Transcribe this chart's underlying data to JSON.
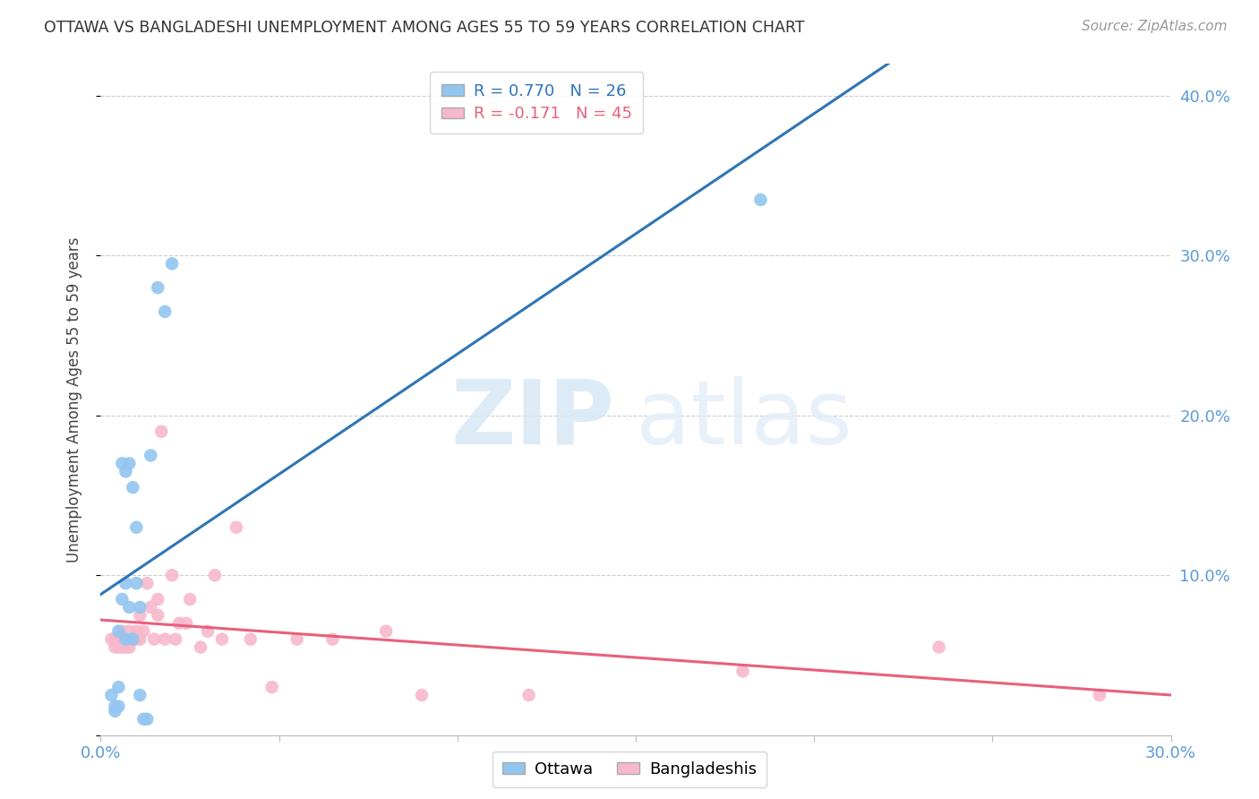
{
  "title": "OTTAWA VS BANGLADESHI UNEMPLOYMENT AMONG AGES 55 TO 59 YEARS CORRELATION CHART",
  "source": "Source: ZipAtlas.com",
  "ylabel": "Unemployment Among Ages 55 to 59 years",
  "xlim": [
    0.0,
    0.3
  ],
  "ylim": [
    0.0,
    0.42
  ],
  "x_ticks": [
    0.0,
    0.05,
    0.1,
    0.15,
    0.2,
    0.25,
    0.3
  ],
  "x_tick_labels": [
    "0.0%",
    "",
    "",
    "",
    "",
    "",
    "30.0%"
  ],
  "y_ticks": [
    0.0,
    0.1,
    0.2,
    0.3,
    0.4
  ],
  "y_tick_labels": [
    "",
    "10.0%",
    "20.0%",
    "30.0%",
    "40.0%"
  ],
  "ottawa_color": "#92C5F0",
  "bangladeshi_color": "#F7B8CB",
  "ottawa_line_color": "#2E75B6",
  "bangladeshi_line_color": "#E8607A",
  "ottawa_R": 0.77,
  "ottawa_N": 26,
  "bangladeshi_R": -0.171,
  "bangladeshi_N": 45,
  "watermark_zip": "ZIP",
  "watermark_atlas": "atlas",
  "background_color": "#FFFFFF",
  "grid_color": "#CCCCCC",
  "ottawa_x": [
    0.003,
    0.004,
    0.004,
    0.005,
    0.005,
    0.005,
    0.006,
    0.006,
    0.007,
    0.007,
    0.007,
    0.008,
    0.008,
    0.009,
    0.009,
    0.01,
    0.01,
    0.011,
    0.011,
    0.012,
    0.013,
    0.014,
    0.016,
    0.018,
    0.02,
    0.185
  ],
  "ottawa_y": [
    0.025,
    0.018,
    0.015,
    0.065,
    0.03,
    0.018,
    0.085,
    0.17,
    0.165,
    0.095,
    0.06,
    0.17,
    0.08,
    0.155,
    0.06,
    0.095,
    0.13,
    0.08,
    0.025,
    0.01,
    0.01,
    0.175,
    0.28,
    0.265,
    0.295,
    0.335
  ],
  "bangladeshi_x": [
    0.003,
    0.004,
    0.004,
    0.005,
    0.005,
    0.006,
    0.006,
    0.007,
    0.007,
    0.007,
    0.008,
    0.008,
    0.009,
    0.01,
    0.01,
    0.011,
    0.011,
    0.012,
    0.013,
    0.014,
    0.015,
    0.016,
    0.016,
    0.017,
    0.018,
    0.02,
    0.021,
    0.022,
    0.024,
    0.025,
    0.028,
    0.03,
    0.032,
    0.034,
    0.038,
    0.042,
    0.048,
    0.055,
    0.065,
    0.08,
    0.09,
    0.12,
    0.18,
    0.235,
    0.28
  ],
  "bangladeshi_y": [
    0.06,
    0.055,
    0.06,
    0.06,
    0.055,
    0.065,
    0.055,
    0.06,
    0.06,
    0.055,
    0.065,
    0.055,
    0.06,
    0.06,
    0.065,
    0.06,
    0.075,
    0.065,
    0.095,
    0.08,
    0.06,
    0.075,
    0.085,
    0.19,
    0.06,
    0.1,
    0.06,
    0.07,
    0.07,
    0.085,
    0.055,
    0.065,
    0.1,
    0.06,
    0.13,
    0.06,
    0.03,
    0.06,
    0.06,
    0.065,
    0.025,
    0.025,
    0.04,
    0.055,
    0.025
  ],
  "ottawa_line_x": [
    0.0,
    0.3
  ],
  "bangladeshi_line_x": [
    0.0,
    0.3
  ]
}
